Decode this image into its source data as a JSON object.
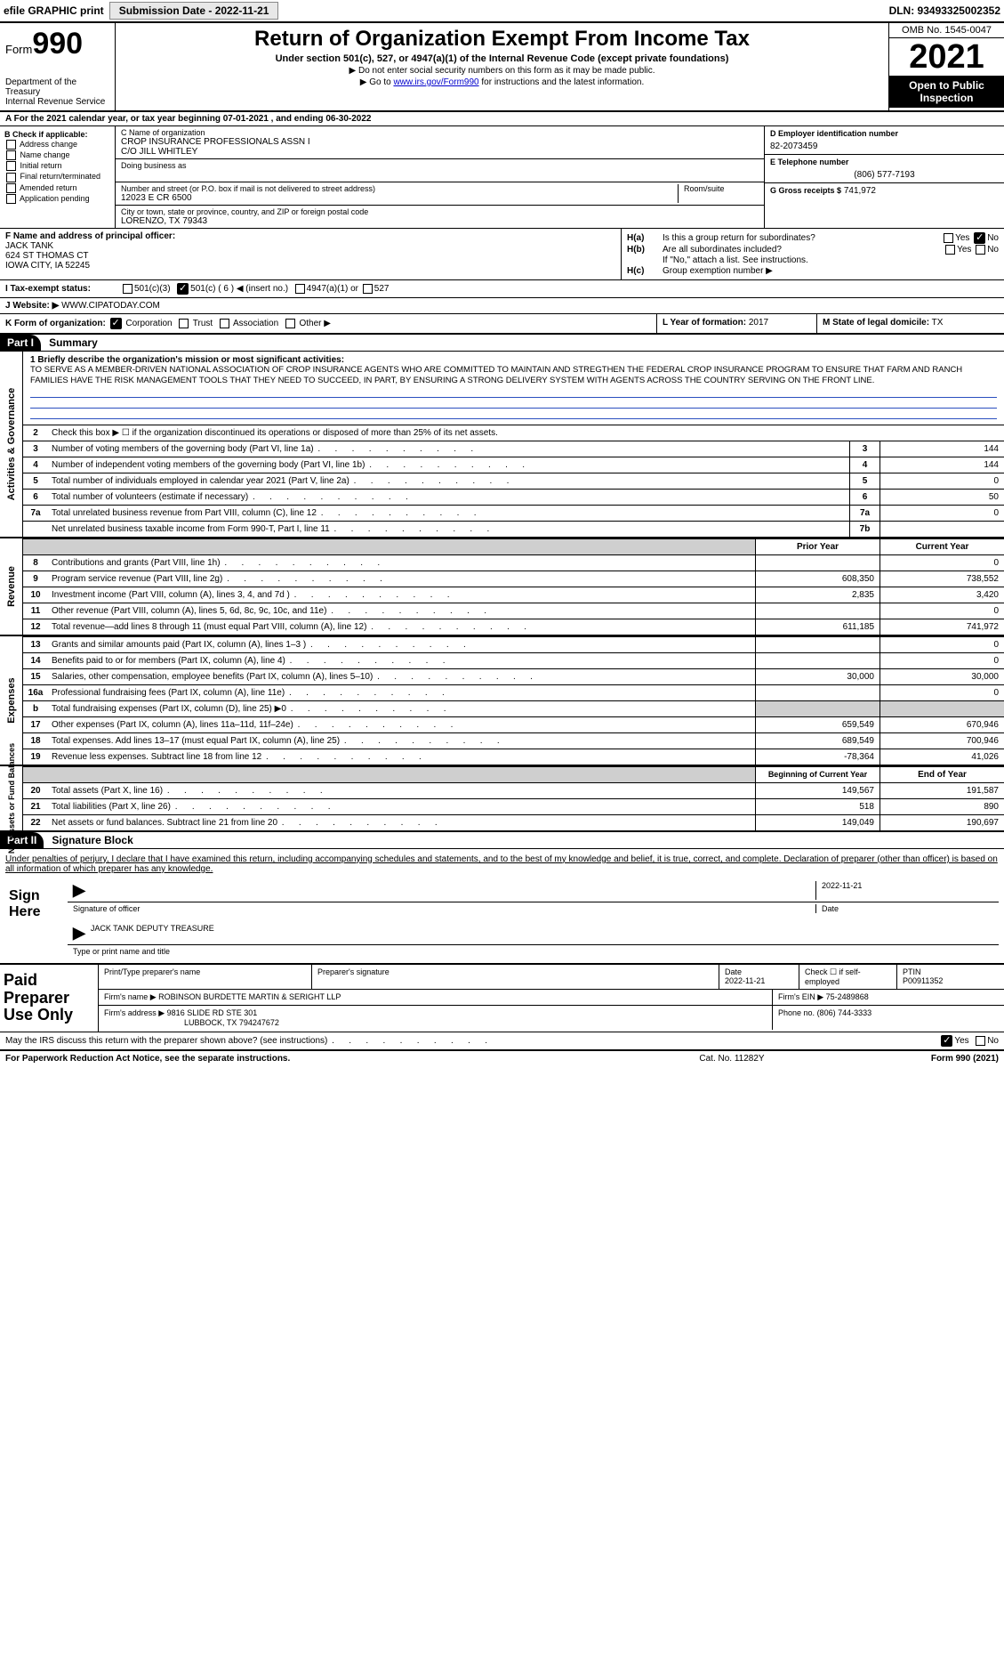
{
  "topbar": {
    "efile": "efile GRAPHIC print",
    "submit_btn": "Submission Date - 2022-11-21",
    "dln": "DLN: 93493325002352"
  },
  "header": {
    "form_word": "Form",
    "form_num": "990",
    "dept": "Department of the Treasury",
    "irs": "Internal Revenue Service",
    "title": "Return of Organization Exempt From Income Tax",
    "sub1": "Under section 501(c), 527, or 4947(a)(1) of the Internal Revenue Code (except private foundations)",
    "sub2": "▶ Do not enter social security numbers on this form as it may be made public.",
    "sub3_pre": "▶ Go to ",
    "sub3_link": "www.irs.gov/Form990",
    "sub3_post": " for instructions and the latest information.",
    "omb": "OMB No. 1545-0047",
    "year": "2021",
    "inspect": "Open to Public Inspection"
  },
  "row_a": "A  For the 2021 calendar year, or tax year beginning 07-01-2021     , and ending 06-30-2022",
  "col_b": {
    "title": "B Check if applicable:",
    "addr": "Address change",
    "name": "Name change",
    "init": "Initial return",
    "final": "Final return/terminated",
    "amend": "Amended return",
    "app": "Application pending"
  },
  "col_c": {
    "name_lbl": "C Name of organization",
    "name1": "CROP INSURANCE PROFESSIONALS ASSN I",
    "name2": "C/O JILL WHITLEY",
    "dba_lbl": "Doing business as",
    "street_lbl": "Number and street (or P.O. box if mail is not delivered to street address)",
    "street": "12023 E CR 6500",
    "room_lbl": "Room/suite",
    "city_lbl": "City or town, state or province, country, and ZIP or foreign postal code",
    "city": "LORENZO, TX  79343"
  },
  "col_d": {
    "ein_lbl": "D Employer identification number",
    "ein": "82-2073459",
    "tel_lbl": "E Telephone number",
    "tel": "(806) 577-7193",
    "gross_lbl": "G Gross receipts $",
    "gross": "741,972"
  },
  "sec_f": {
    "lbl": "F Name and address of principal officer:",
    "name": "JACK TANK",
    "addr1": "624 ST THOMAS CT",
    "addr2": "IOWA CITY, IA  52245"
  },
  "sec_h": {
    "ha_lbl": "H(a)",
    "ha_txt": "Is this a group return for subordinates?",
    "hb_lbl": "H(b)",
    "hb_txt": "Are all subordinates included?",
    "hb_note": "If \"No,\" attach a list. See instructions.",
    "hc_lbl": "H(c)",
    "hc_txt": "Group exemption number ▶",
    "yes": "Yes",
    "no": "No"
  },
  "row_i": {
    "lbl": "I    Tax-exempt status:",
    "c3": "501(c)(3)",
    "c": "501(c) ( 6 ) ◀ (insert no.)",
    "a1": "4947(a)(1) or",
    "s527": "527"
  },
  "row_j": {
    "lbl": "J    Website: ▶",
    "val": "WWW.CIPATODAY.COM"
  },
  "row_k": {
    "lbl": "K Form of organization:",
    "corp": "Corporation",
    "trust": "Trust",
    "assoc": "Association",
    "other": "Other ▶"
  },
  "row_l": {
    "lbl": "L Year of formation:",
    "val": "2017"
  },
  "row_m": {
    "lbl": "M State of legal domicile:",
    "val": "TX"
  },
  "part1": {
    "hdr": "Part I",
    "title": "Summary"
  },
  "summary": {
    "q1_lbl": "1  Briefly describe the organization's mission or most significant activities:",
    "mission": "TO SERVE AS A MEMBER-DRIVEN NATIONAL ASSOCIATION OF CROP INSURANCE AGENTS WHO ARE COMMITTED TO MAINTAIN AND STREGTHEN THE FEDERAL CROP INSURANCE PROGRAM TO ENSURE THAT FARM AND RANCH FAMILIES HAVE THE RISK MANAGEMENT TOOLS THAT THEY NEED TO SUCCEED, IN PART, BY ENSURING A STRONG DELIVERY SYSTEM WITH AGENTS ACROSS THE COUNTRY SERVING ON THE FRONT LINE.",
    "q2": "Check this box ▶ ☐  if the organization discontinued its operations or disposed of more than 25% of its net assets.",
    "side_ag": "Activities & Governance",
    "side_rev": "Revenue",
    "side_exp": "Expenses",
    "side_net": "Net Assets or Fund Balances",
    "rows_ag": [
      {
        "n": "3",
        "d": "Number of voting members of the governing body (Part VI, line 1a)",
        "c": "3",
        "v": "144"
      },
      {
        "n": "4",
        "d": "Number of independent voting members of the governing body (Part VI, line 1b)",
        "c": "4",
        "v": "144"
      },
      {
        "n": "5",
        "d": "Total number of individuals employed in calendar year 2021 (Part V, line 2a)",
        "c": "5",
        "v": "0"
      },
      {
        "n": "6",
        "d": "Total number of volunteers (estimate if necessary)",
        "c": "6",
        "v": "50"
      },
      {
        "n": "7a",
        "d": "Total unrelated business revenue from Part VIII, column (C), line 12",
        "c": "7a",
        "v": "0"
      },
      {
        "n": "",
        "d": "Net unrelated business taxable income from Form 990-T, Part I, line 11",
        "c": "7b",
        "v": ""
      }
    ],
    "hdr_prior": "Prior Year",
    "hdr_cur": "Current Year",
    "rows_rev": [
      {
        "n": "8",
        "d": "Contributions and grants (Part VIII, line 1h)",
        "p": "",
        "c": "0"
      },
      {
        "n": "9",
        "d": "Program service revenue (Part VIII, line 2g)",
        "p": "608,350",
        "c": "738,552"
      },
      {
        "n": "10",
        "d": "Investment income (Part VIII, column (A), lines 3, 4, and 7d )",
        "p": "2,835",
        "c": "3,420"
      },
      {
        "n": "11",
        "d": "Other revenue (Part VIII, column (A), lines 5, 6d, 8c, 9c, 10c, and 11e)",
        "p": "",
        "c": "0"
      },
      {
        "n": "12",
        "d": "Total revenue—add lines 8 through 11 (must equal Part VIII, column (A), line 12)",
        "p": "611,185",
        "c": "741,972"
      }
    ],
    "rows_exp": [
      {
        "n": "13",
        "d": "Grants and similar amounts paid (Part IX, column (A), lines 1–3 )",
        "p": "",
        "c": "0"
      },
      {
        "n": "14",
        "d": "Benefits paid to or for members (Part IX, column (A), line 4)",
        "p": "",
        "c": "0"
      },
      {
        "n": "15",
        "d": "Salaries, other compensation, employee benefits (Part IX, column (A), lines 5–10)",
        "p": "30,000",
        "c": "30,000"
      },
      {
        "n": "16a",
        "d": "Professional fundraising fees (Part IX, column (A), line 11e)",
        "p": "",
        "c": "0"
      },
      {
        "n": "b",
        "d": "Total fundraising expenses (Part IX, column (D), line 25) ▶0",
        "p": "GREY",
        "c": "GREY"
      },
      {
        "n": "17",
        "d": "Other expenses (Part IX, column (A), lines 11a–11d, 11f–24e)",
        "p": "659,549",
        "c": "670,946"
      },
      {
        "n": "18",
        "d": "Total expenses. Add lines 13–17 (must equal Part IX, column (A), line 25)",
        "p": "689,549",
        "c": "700,946"
      },
      {
        "n": "19",
        "d": "Revenue less expenses. Subtract line 18 from line 12",
        "p": "-78,364",
        "c": "41,026"
      }
    ],
    "hdr_beg": "Beginning of Current Year",
    "hdr_end": "End of Year",
    "rows_net": [
      {
        "n": "20",
        "d": "Total assets (Part X, line 16)",
        "p": "149,567",
        "c": "191,587"
      },
      {
        "n": "21",
        "d": "Total liabilities (Part X, line 26)",
        "p": "518",
        "c": "890"
      },
      {
        "n": "22",
        "d": "Net assets or fund balances. Subtract line 21 from line 20",
        "p": "149,049",
        "c": "190,697"
      }
    ]
  },
  "part2": {
    "hdr": "Part II",
    "title": "Signature Block"
  },
  "sig": {
    "decl": "Under penalties of perjury, I declare that I have examined this return, including accompanying schedules and statements, and to the best of my knowledge and belief, it is true, correct, and complete. Declaration of preparer (other than officer) is based on all information of which preparer has any knowledge.",
    "sign_here": "Sign Here",
    "sig_officer": "Signature of officer",
    "date": "Date",
    "date_val": "2022-11-21",
    "name_title": "JACK TANK DEPUTY TREASURE",
    "type_name": "Type or print name and title"
  },
  "prep": {
    "title": "Paid Preparer Use Only",
    "h1": "Print/Type preparer's name",
    "h2": "Preparer's signature",
    "h3": "Date",
    "h3v": "2022-11-21",
    "h4": "Check ☐ if self-employed",
    "h5": "PTIN",
    "h5v": "P00911352",
    "firm_name_lbl": "Firm's name    ▶",
    "firm_name": "ROBINSON BURDETTE MARTIN & SERIGHT LLP",
    "firm_ein_lbl": "Firm's EIN ▶",
    "firm_ein": "75-2489868",
    "firm_addr_lbl": "Firm's address ▶",
    "firm_addr1": "9816 SLIDE RD STE 301",
    "firm_addr2": "LUBBOCK, TX  794247672",
    "phone_lbl": "Phone no.",
    "phone": "(806) 744-3333"
  },
  "footer": {
    "discuss": "May the IRS discuss this return with the preparer shown above? (see instructions)",
    "yes": "Yes",
    "no": "No",
    "pra": "For Paperwork Reduction Act Notice, see the separate instructions.",
    "cat": "Cat. No. 11282Y",
    "form": "Form 990 (2021)"
  }
}
